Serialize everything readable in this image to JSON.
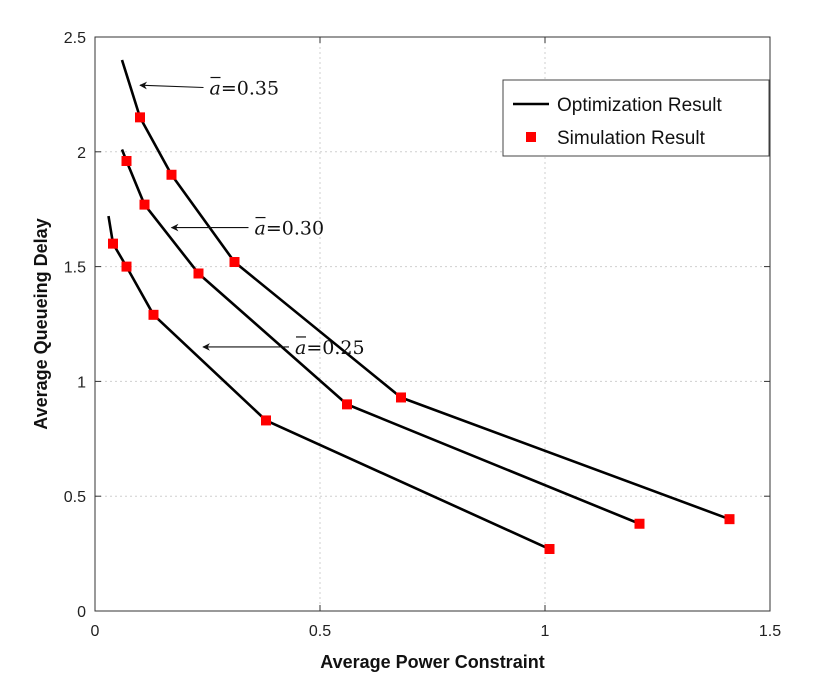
{
  "chart_data": {
    "type": "line",
    "title": "",
    "xlabel": "Average Power Constraint",
    "ylabel": "Average Queueing Delay",
    "xlim": [
      0,
      1.5
    ],
    "ylim": [
      0,
      2.5
    ],
    "xticks": [
      0,
      0.5,
      1,
      1.5
    ],
    "xtick_labels": [
      "0",
      "0.5",
      "1",
      "1.5"
    ],
    "yticks": [
      0,
      0.5,
      1,
      1.5,
      2,
      2.5
    ],
    "ytick_labels": [
      "0",
      "0.5",
      "1",
      "1.5",
      "2",
      "2.5"
    ],
    "grid": true,
    "legend": {
      "position": "top-right",
      "entries": [
        "Optimization Result",
        "Simulation Result"
      ]
    },
    "series": [
      {
        "name": "a=0.35",
        "line_x": [
          0.06,
          0.1,
          0.17,
          0.31,
          0.68,
          1.41
        ],
        "line_y": [
          2.4,
          2.15,
          1.9,
          1.52,
          0.93,
          0.4
        ],
        "sim_x": [
          0.1,
          0.17,
          0.31,
          0.68,
          1.41
        ],
        "sim_y": [
          2.15,
          1.9,
          1.52,
          0.93,
          0.4
        ]
      },
      {
        "name": "a=0.30",
        "line_x": [
          0.06,
          0.07,
          0.11,
          0.23,
          0.56,
          1.21
        ],
        "line_y": [
          2.01,
          1.96,
          1.77,
          1.47,
          0.9,
          0.38
        ],
        "sim_x": [
          0.07,
          0.11,
          0.23,
          0.56,
          1.21
        ],
        "sim_y": [
          1.96,
          1.77,
          1.47,
          0.9,
          0.38
        ]
      },
      {
        "name": "a=0.25",
        "line_x": [
          0.03,
          0.04,
          0.07,
          0.13,
          0.38,
          1.01
        ],
        "line_y": [
          1.72,
          1.6,
          1.5,
          1.29,
          0.83,
          0.27
        ],
        "sim_x": [
          0.04,
          0.07,
          0.13,
          0.38,
          1.01
        ],
        "sim_y": [
          1.6,
          1.5,
          1.29,
          0.83,
          0.27
        ]
      }
    ],
    "annotations": [
      {
        "symbol": "a",
        "text": "=0.35",
        "arrow_to_x": 0.1,
        "arrow_to_y": 2.29,
        "text_x": 0.25,
        "text_y": 2.28
      },
      {
        "symbol": "a",
        "text": "=0.30",
        "arrow_to_x": 0.17,
        "arrow_to_y": 1.67,
        "text_x": 0.35,
        "text_y": 1.67
      },
      {
        "symbol": "a",
        "text": "=0.25",
        "arrow_to_x": 0.24,
        "arrow_to_y": 1.15,
        "text_x": 0.44,
        "text_y": 1.15
      }
    ],
    "colors": {
      "line": "#000000",
      "marker": "#ff0000",
      "grid": "#cfcfcf",
      "axis": "#333333"
    }
  }
}
